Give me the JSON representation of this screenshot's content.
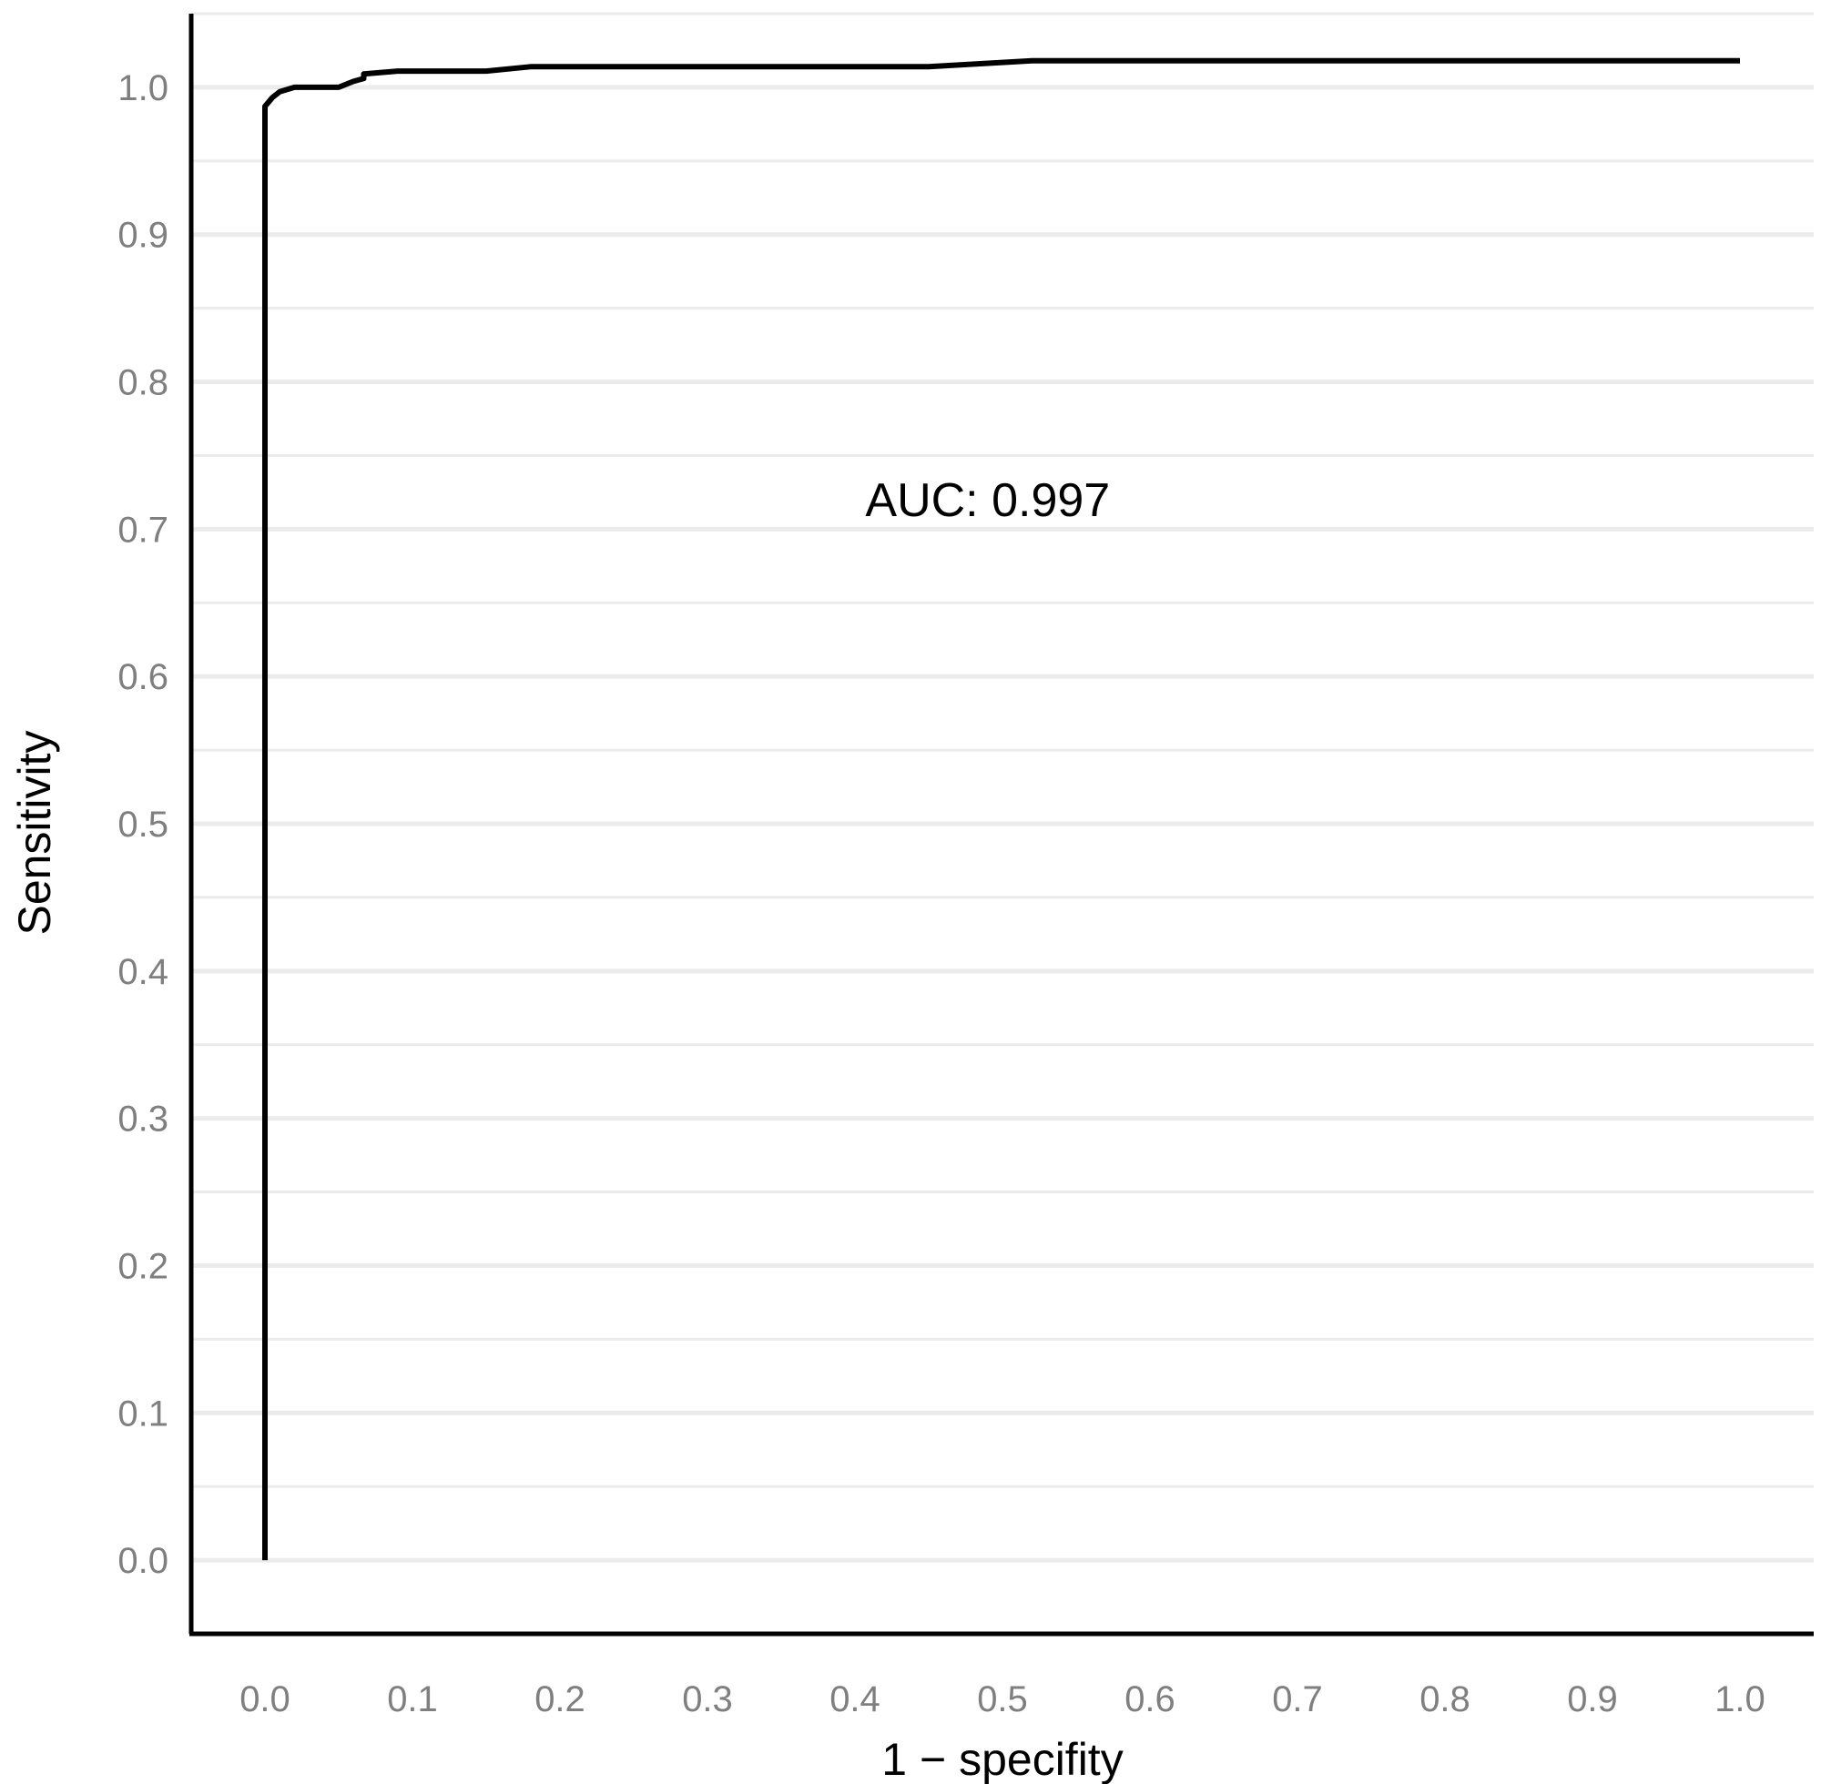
{
  "chart_data": {
    "type": "line",
    "title": "",
    "xlabel": "1 − specifity",
    "ylabel": "Sensitivity",
    "xlim": [
      -0.05,
      1.05
    ],
    "ylim": [
      -0.05,
      1.05
    ],
    "x_ticks": [
      0.0,
      0.1,
      0.2,
      0.3,
      0.4,
      0.5,
      0.6,
      0.7,
      0.8,
      0.9,
      1.0
    ],
    "x_tick_labels": [
      "0.0",
      "0.1",
      "0.2",
      "0.3",
      "0.4",
      "0.5",
      "0.6",
      "0.7",
      "0.8",
      "0.9",
      "1.0"
    ],
    "y_ticks": [
      0.0,
      0.1,
      0.2,
      0.3,
      0.4,
      0.5,
      0.6,
      0.7,
      0.8,
      0.9,
      1.0
    ],
    "y_tick_labels": [
      "0.0",
      "0.1",
      "0.2",
      "0.3",
      "0.4",
      "0.5",
      "0.6",
      "0.7",
      "0.8",
      "0.9",
      "1.0"
    ],
    "grid": "horizontal",
    "legend": "none",
    "annotation": {
      "text": "AUC: 0.997",
      "x": 0.49,
      "y": 0.72
    },
    "series": [
      {
        "x": [
          0.0,
          0.0,
          0.005,
          0.01,
          0.02,
          0.05,
          0.06,
          0.067,
          0.067,
          0.09,
          0.15,
          0.18,
          0.45,
          0.52,
          1.0
        ],
        "y": [
          0.0,
          0.987,
          0.993,
          0.997,
          1.0,
          1.0,
          1.004,
          1.006,
          1.009,
          1.011,
          1.011,
          1.014,
          1.014,
          1.018,
          1.018
        ]
      }
    ],
    "colors": {
      "line": "#000000",
      "grid": "#ebebeb",
      "axis": "#000000",
      "tick_text": "#7f7f7f"
    }
  }
}
